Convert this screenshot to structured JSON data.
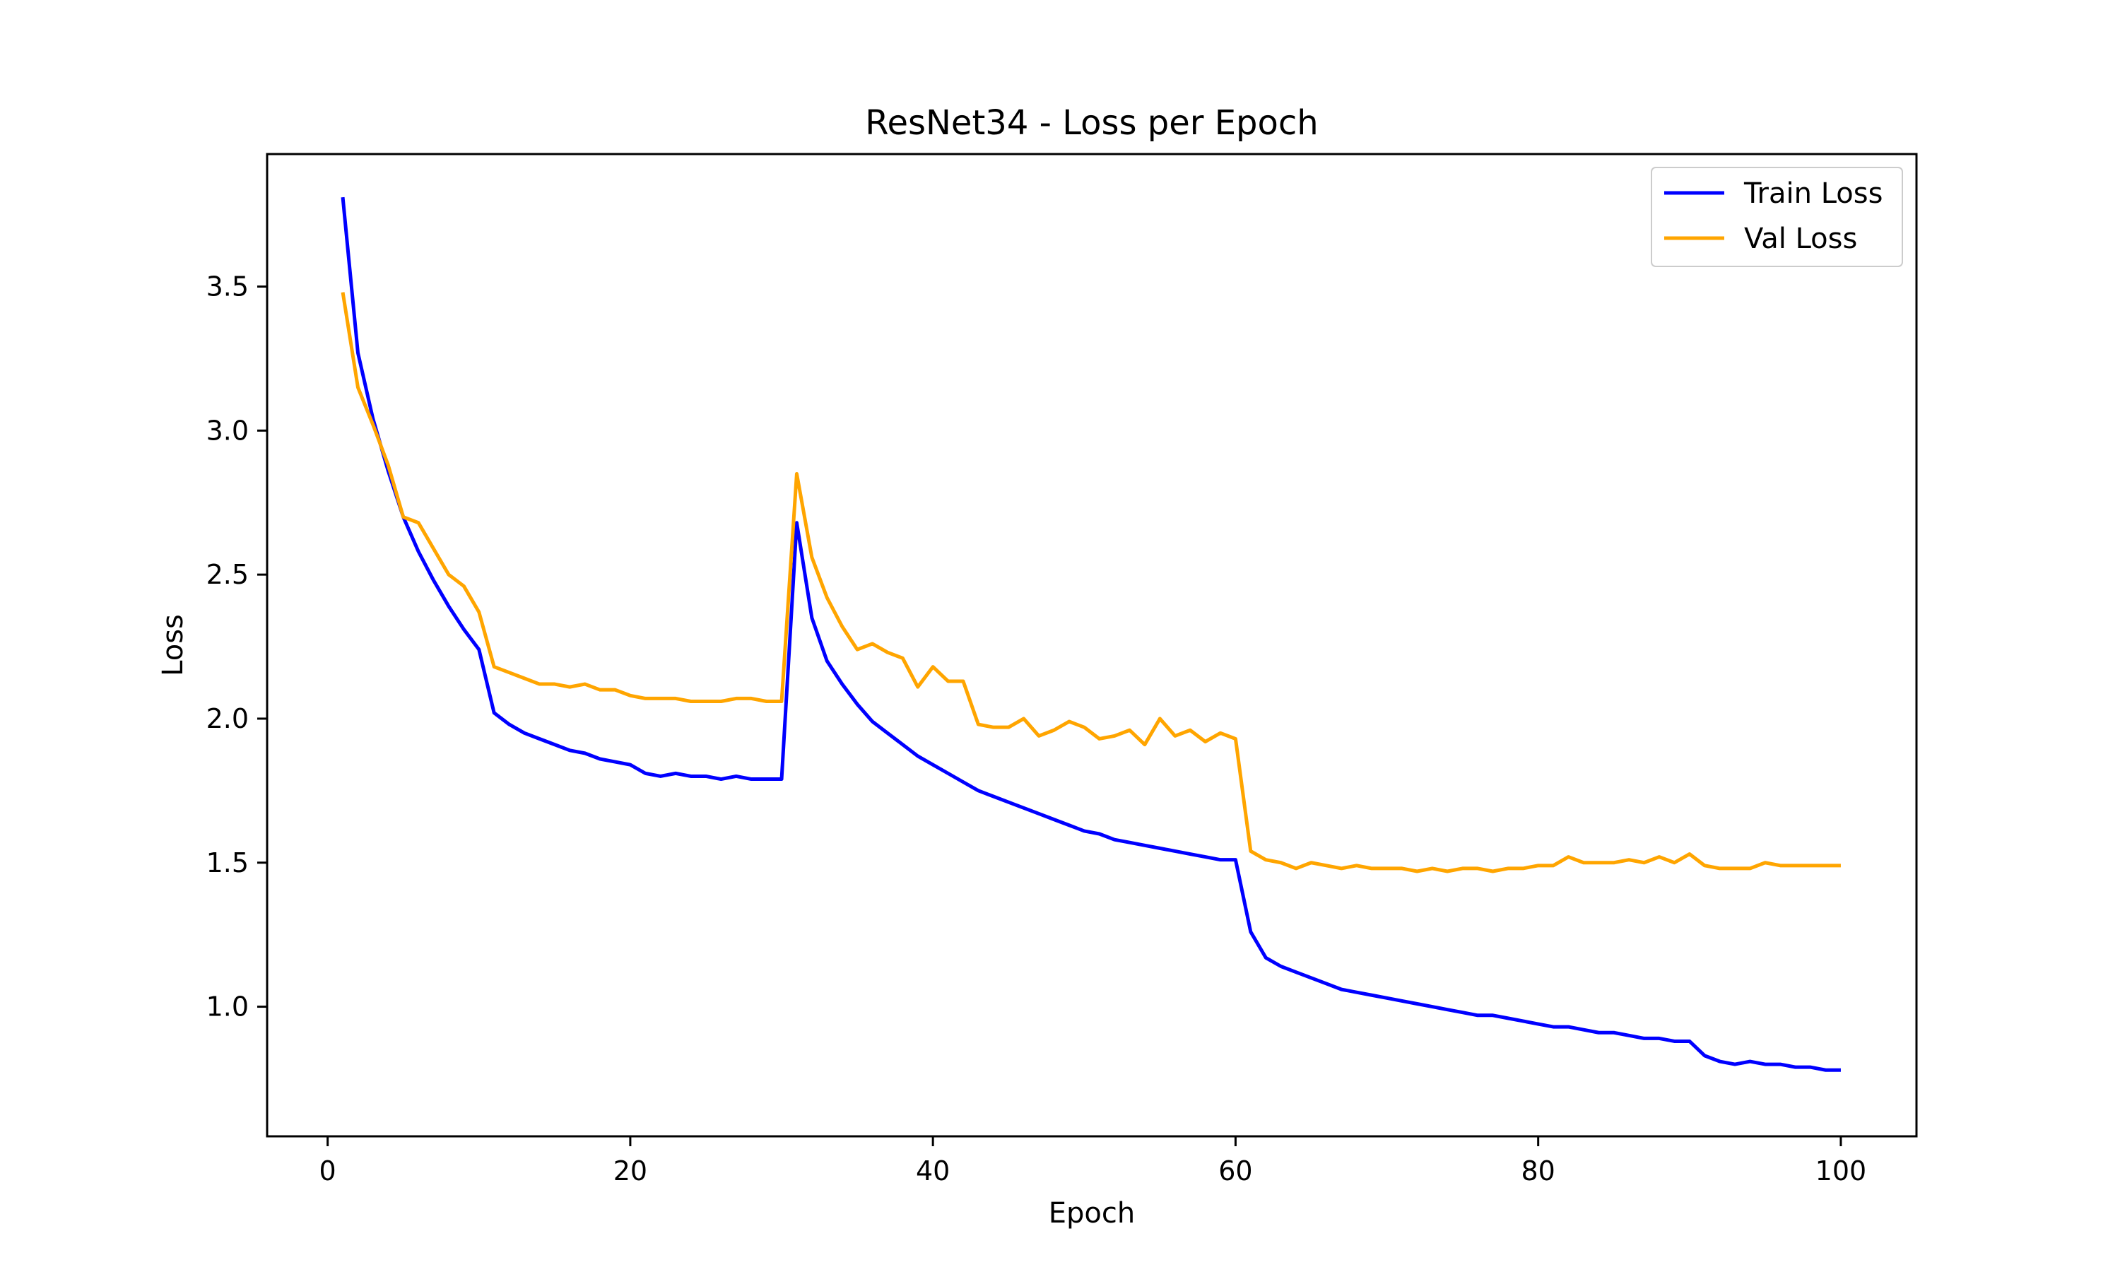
{
  "chart_data": {
    "type": "line",
    "title": "ResNet34 - Loss per Epoch",
    "xlabel": "Epoch",
    "ylabel": "Loss",
    "xlim": [
      -4,
      105
    ],
    "ylim": [
      0.55,
      3.96
    ],
    "xticks": [
      0,
      20,
      40,
      60,
      80,
      100
    ],
    "yticks": [
      1.0,
      1.5,
      2.0,
      2.5,
      3.0,
      3.5
    ],
    "grid": false,
    "legend_position": "upper right",
    "x": [
      1,
      2,
      3,
      4,
      5,
      6,
      7,
      8,
      9,
      10,
      11,
      12,
      13,
      14,
      15,
      16,
      17,
      18,
      19,
      20,
      21,
      22,
      23,
      24,
      25,
      26,
      27,
      28,
      29,
      30,
      31,
      32,
      33,
      34,
      35,
      36,
      37,
      38,
      39,
      40,
      41,
      42,
      43,
      44,
      45,
      46,
      47,
      48,
      49,
      50,
      51,
      52,
      53,
      54,
      55,
      56,
      57,
      58,
      59,
      60,
      61,
      62,
      63,
      64,
      65,
      66,
      67,
      68,
      69,
      70,
      71,
      72,
      73,
      74,
      75,
      76,
      77,
      78,
      79,
      80,
      81,
      82,
      83,
      84,
      85,
      86,
      87,
      88,
      89,
      90,
      91,
      92,
      93,
      94,
      95,
      96,
      97,
      98,
      99,
      100
    ],
    "series": [
      {
        "name": "Train Loss",
        "color": "#0000ff",
        "values": [
          3.81,
          3.27,
          3.04,
          2.86,
          2.7,
          2.58,
          2.48,
          2.39,
          2.31,
          2.24,
          2.02,
          1.98,
          1.95,
          1.93,
          1.91,
          1.89,
          1.88,
          1.86,
          1.85,
          1.84,
          1.81,
          1.8,
          1.81,
          1.8,
          1.8,
          1.79,
          1.8,
          1.79,
          1.79,
          1.79,
          2.68,
          2.35,
          2.2,
          2.12,
          2.05,
          1.99,
          1.95,
          1.91,
          1.87,
          1.84,
          1.81,
          1.78,
          1.75,
          1.73,
          1.71,
          1.69,
          1.67,
          1.65,
          1.63,
          1.61,
          1.6,
          1.58,
          1.57,
          1.56,
          1.55,
          1.54,
          1.53,
          1.52,
          1.51,
          1.51,
          1.26,
          1.17,
          1.14,
          1.12,
          1.1,
          1.08,
          1.06,
          1.05,
          1.04,
          1.03,
          1.02,
          1.01,
          1.0,
          0.99,
          0.98,
          0.97,
          0.97,
          0.96,
          0.95,
          0.94,
          0.93,
          0.93,
          0.92,
          0.91,
          0.91,
          0.9,
          0.89,
          0.89,
          0.88,
          0.88,
          0.83,
          0.81,
          0.8,
          0.81,
          0.8,
          0.8,
          0.79,
          0.79,
          0.78,
          0.78
        ]
      },
      {
        "name": "Val Loss",
        "color": "#ffa500",
        "values": [
          3.48,
          3.15,
          3.02,
          2.88,
          2.7,
          2.68,
          2.59,
          2.5,
          2.46,
          2.37,
          2.18,
          2.16,
          2.14,
          2.12,
          2.12,
          2.11,
          2.12,
          2.1,
          2.1,
          2.08,
          2.07,
          2.07,
          2.07,
          2.06,
          2.06,
          2.06,
          2.07,
          2.07,
          2.06,
          2.06,
          2.85,
          2.56,
          2.42,
          2.32,
          2.24,
          2.26,
          2.23,
          2.21,
          2.11,
          2.18,
          2.13,
          2.13,
          1.98,
          1.97,
          1.97,
          2.0,
          1.94,
          1.96,
          1.99,
          1.97,
          1.93,
          1.94,
          1.96,
          1.91,
          2.0,
          1.94,
          1.96,
          1.92,
          1.95,
          1.93,
          1.54,
          1.51,
          1.5,
          1.48,
          1.5,
          1.49,
          1.48,
          1.49,
          1.48,
          1.48,
          1.48,
          1.47,
          1.48,
          1.47,
          1.48,
          1.48,
          1.47,
          1.48,
          1.48,
          1.49,
          1.49,
          1.52,
          1.5,
          1.5,
          1.5,
          1.51,
          1.5,
          1.52,
          1.5,
          1.53,
          1.49,
          1.48,
          1.48,
          1.48,
          1.5,
          1.49,
          1.49,
          1.49,
          1.49,
          1.49
        ]
      }
    ]
  }
}
